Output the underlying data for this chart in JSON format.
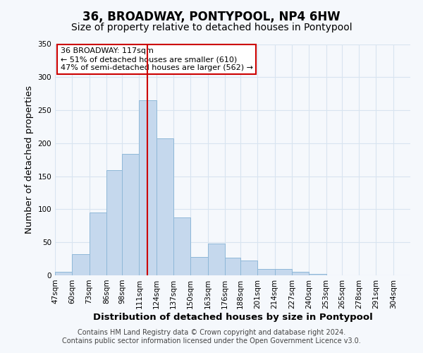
{
  "title": "36, BROADWAY, PONTYPOOL, NP4 6HW",
  "subtitle": "Size of property relative to detached houses in Pontypool",
  "xlabel": "Distribution of detached houses by size in Pontypool",
  "ylabel": "Number of detached properties",
  "bin_labels": [
    "47sqm",
    "60sqm",
    "73sqm",
    "86sqm",
    "98sqm",
    "111sqm",
    "124sqm",
    "137sqm",
    "150sqm",
    "163sqm",
    "176sqm",
    "188sqm",
    "201sqm",
    "214sqm",
    "227sqm",
    "240sqm",
    "253sqm",
    "265sqm",
    "278sqm",
    "291sqm",
    "304sqm"
  ],
  "bar_values": [
    5,
    32,
    95,
    159,
    184,
    265,
    207,
    88,
    28,
    48,
    27,
    22,
    10,
    10,
    5,
    2,
    0,
    0,
    0,
    0,
    0
  ],
  "bar_color": "#c5d8ed",
  "bar_edge_color": "#8fb8d8",
  "marker_line_color": "#cc0000",
  "annotation_title": "36 BROADWAY: 117sqm",
  "annotation_line1": "← 51% of detached houses are smaller (610)",
  "annotation_line2": "47% of semi-detached houses are larger (562) →",
  "annotation_box_color": "#ffffff",
  "annotation_box_edge": "#cc0000",
  "ylim": [
    0,
    350
  ],
  "yticks": [
    0,
    50,
    100,
    150,
    200,
    250,
    300,
    350
  ],
  "footer1": "Contains HM Land Registry data © Crown copyright and database right 2024.",
  "footer2": "Contains public sector information licensed under the Open Government Licence v3.0.",
  "background_color": "#f5f8fc",
  "plot_background": "#f5f8fc",
  "grid_color": "#d8e4f0",
  "title_fontsize": 12,
  "subtitle_fontsize": 10,
  "axis_label_fontsize": 9.5,
  "tick_fontsize": 7.5,
  "footer_fontsize": 7
}
